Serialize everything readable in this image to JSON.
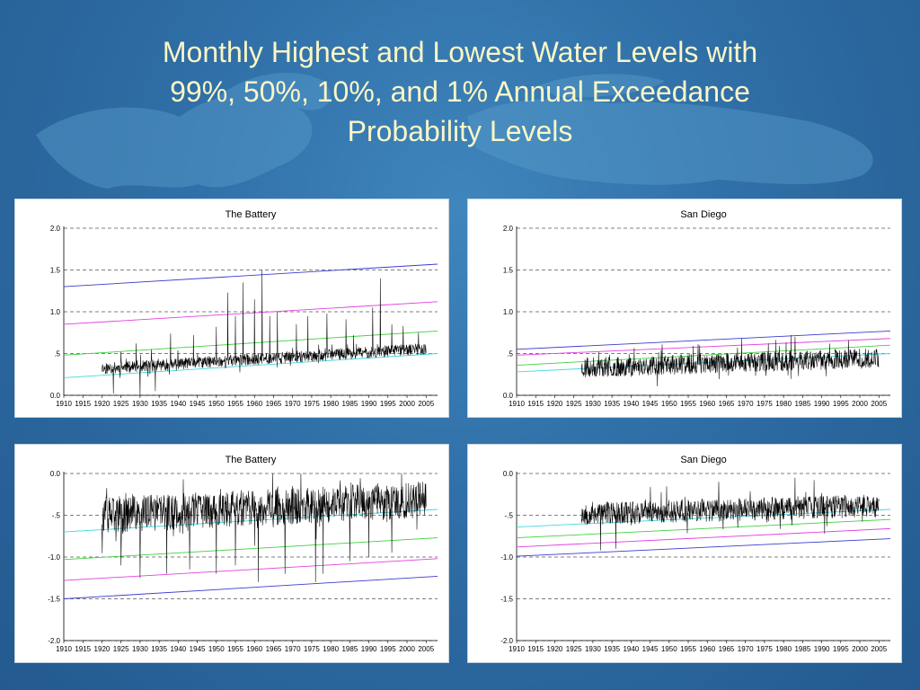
{
  "slide": {
    "title_lines": [
      "Monthly Highest and Lowest Water Levels with",
      "99%, 50%, 10%, and 1%  Annual Exceedance",
      "Probability Levels"
    ]
  },
  "colors": {
    "p1": "#3b3bd0",
    "p10": "#e040e0",
    "p50": "#40d040",
    "p99": "#40d8e0",
    "series": "#000000",
    "grid": "#555555"
  },
  "chart_data": [
    {
      "type": "line",
      "title": "The Battery",
      "xlabel": "",
      "ylabel": "",
      "xlim": [
        1910,
        2008
      ],
      "ylim": [
        0.0,
        2.0
      ],
      "yticks": [
        2.0,
        1.5,
        1.0,
        0.5,
        0.0
      ],
      "yticklabels": [
        "2.0",
        "1.5",
        "1.0",
        ".5",
        "0.0"
      ],
      "xticks": [
        1910,
        1915,
        1920,
        1925,
        1930,
        1935,
        1940,
        1945,
        1950,
        1955,
        1960,
        1965,
        1970,
        1975,
        1980,
        1985,
        1990,
        1995,
        2000,
        2005
      ],
      "grid": "horizontal-dashed",
      "record": {
        "start": 1920,
        "end": 2005,
        "base": 0.32,
        "trend_per_century": 0.28,
        "amp": 0.07,
        "seed": 11,
        "peaks": [
          [
            1925,
            0.52
          ],
          [
            1929,
            0.62
          ],
          [
            1933,
            0.55
          ],
          [
            1938,
            0.74
          ],
          [
            1944,
            0.72
          ],
          [
            1950,
            0.82
          ],
          [
            1953,
            1.23
          ],
          [
            1955,
            0.95
          ],
          [
            1957,
            1.35
          ],
          [
            1960,
            1.15
          ],
          [
            1962,
            1.5
          ],
          [
            1964,
            0.95
          ],
          [
            1966,
            1.0
          ],
          [
            1971,
            0.85
          ],
          [
            1974,
            0.95
          ],
          [
            1979,
            0.98
          ],
          [
            1984,
            0.91
          ],
          [
            1986,
            0.72
          ],
          [
            1991,
            1.05
          ],
          [
            1993,
            1.4
          ],
          [
            1996,
            0.85
          ],
          [
            1999,
            0.83
          ],
          [
            2003,
            0.75
          ]
        ],
        "dips": [
          [
            1923,
            0.02
          ],
          [
            1930,
            0.0
          ],
          [
            1934,
            0.05
          ]
        ]
      },
      "exceedance": [
        {
          "name": "1%",
          "color_key": "p1",
          "start": 1.3,
          "end": 1.57
        },
        {
          "name": "10%",
          "color_key": "p10",
          "start": 0.85,
          "end": 1.12
        },
        {
          "name": "50%",
          "color_key": "p50",
          "start": 0.48,
          "end": 0.77
        },
        {
          "name": "99%",
          "color_key": "p99",
          "start": 0.21,
          "end": 0.5
        }
      ]
    },
    {
      "type": "line",
      "title": "San Diego",
      "xlabel": "",
      "ylabel": "",
      "xlim": [
        1910,
        2008
      ],
      "ylim": [
        0.0,
        2.0
      ],
      "yticks": [
        2.0,
        1.5,
        1.0,
        0.5,
        0.0
      ],
      "yticklabels": [
        "2.0",
        "1.5",
        "1.0",
        ".5",
        "0.0"
      ],
      "xticks": [
        1910,
        1915,
        1920,
        1925,
        1930,
        1935,
        1940,
        1945,
        1950,
        1955,
        1960,
        1965,
        1970,
        1975,
        1980,
        1985,
        1990,
        1995,
        2000,
        2005
      ],
      "grid": "horizontal-dashed",
      "record": {
        "start": 1927,
        "end": 2005,
        "base": 0.33,
        "trend_per_century": 0.15,
        "amp": 0.12,
        "seed": 23,
        "peaks": [
          [
            1958,
            0.6
          ],
          [
            1969,
            0.68
          ],
          [
            1976,
            0.62
          ],
          [
            1982,
            0.72
          ],
          [
            1983,
            0.7
          ],
          [
            1997,
            0.66
          ]
        ],
        "dips": []
      },
      "exceedance": [
        {
          "name": "1%",
          "color_key": "p1",
          "start": 0.55,
          "end": 0.77
        },
        {
          "name": "10%",
          "color_key": "p10",
          "start": 0.48,
          "end": 0.68
        },
        {
          "name": "50%",
          "color_key": "p50",
          "start": 0.36,
          "end": 0.6
        },
        {
          "name": "99%",
          "color_key": "p99",
          "start": 0.28,
          "end": 0.5
        }
      ]
    },
    {
      "type": "line",
      "title": "The Battery",
      "xlabel": "",
      "ylabel": "",
      "xlim": [
        1910,
        2008
      ],
      "ylim": [
        -2.0,
        0.0
      ],
      "yticks": [
        0.0,
        -0.5,
        -1.0,
        -1.5,
        -2.0
      ],
      "yticklabels": [
        "0.0",
        "-.5",
        "-1.0",
        "-1.5",
        "-2.0"
      ],
      "xticks": [
        1910,
        1915,
        1920,
        1925,
        1930,
        1935,
        1940,
        1945,
        1950,
        1955,
        1960,
        1965,
        1970,
        1975,
        1980,
        1985,
        1990,
        1995,
        2000,
        2005
      ],
      "grid": "horizontal-dashed",
      "record": {
        "start": 1920,
        "end": 2005,
        "base": -0.5,
        "trend_per_century": 0.22,
        "amp": 0.22,
        "seed": 37,
        "peaks": [
          [
            2003,
            -0.1
          ],
          [
            1970,
            -0.15
          ]
        ],
        "dips": [
          [
            1925,
            -1.1
          ],
          [
            1930,
            -1.25
          ],
          [
            1937,
            -1.2
          ],
          [
            1943,
            -1.15
          ],
          [
            1950,
            -1.2
          ],
          [
            1955,
            -1.1
          ],
          [
            1961,
            -1.3
          ],
          [
            1968,
            -1.2
          ],
          [
            1976,
            -1.3
          ],
          [
            1978,
            -1.2
          ],
          [
            1985,
            -1.05
          ],
          [
            1990,
            -1.0
          ],
          [
            1996,
            -0.95
          ]
        ]
      },
      "exceedance": [
        {
          "name": "99%",
          "color_key": "p99",
          "start": -0.7,
          "end": -0.43
        },
        {
          "name": "50%",
          "color_key": "p50",
          "start": -1.03,
          "end": -0.77
        },
        {
          "name": "10%",
          "color_key": "p10",
          "start": -1.28,
          "end": -1.02
        },
        {
          "name": "1%",
          "color_key": "p1",
          "start": -1.5,
          "end": -1.23
        }
      ]
    },
    {
      "type": "line",
      "title": "San Diego",
      "xlabel": "",
      "ylabel": "",
      "xlim": [
        1910,
        2008
      ],
      "ylim": [
        -2.0,
        0.0
      ],
      "yticks": [
        0.0,
        -0.5,
        -1.0,
        -1.5,
        -2.0
      ],
      "yticklabels": [
        "0.0",
        "-.5",
        "-1.0",
        "-1.5",
        "-2.0"
      ],
      "xticks": [
        1910,
        1915,
        1920,
        1925,
        1930,
        1935,
        1940,
        1945,
        1950,
        1955,
        1960,
        1965,
        1970,
        1975,
        1980,
        1985,
        1990,
        1995,
        2000,
        2005
      ],
      "grid": "horizontal-dashed",
      "record": {
        "start": 1927,
        "end": 2005,
        "base": -0.48,
        "trend_per_century": 0.12,
        "amp": 0.14,
        "seed": 53,
        "peaks": [
          [
            1963,
            -0.1
          ],
          [
            1983,
            -0.05
          ],
          [
            1988,
            -0.08
          ]
        ],
        "dips": [
          [
            1932,
            -0.92
          ],
          [
            1936,
            -0.9
          ]
        ]
      },
      "exceedance": [
        {
          "name": "99%",
          "color_key": "p99",
          "start": -0.64,
          "end": -0.43
        },
        {
          "name": "50%",
          "color_key": "p50",
          "start": -0.77,
          "end": -0.55
        },
        {
          "name": "10%",
          "color_key": "p10",
          "start": -0.88,
          "end": -0.66
        },
        {
          "name": "1%",
          "color_key": "p1",
          "start": -0.99,
          "end": -0.78
        }
      ]
    }
  ]
}
